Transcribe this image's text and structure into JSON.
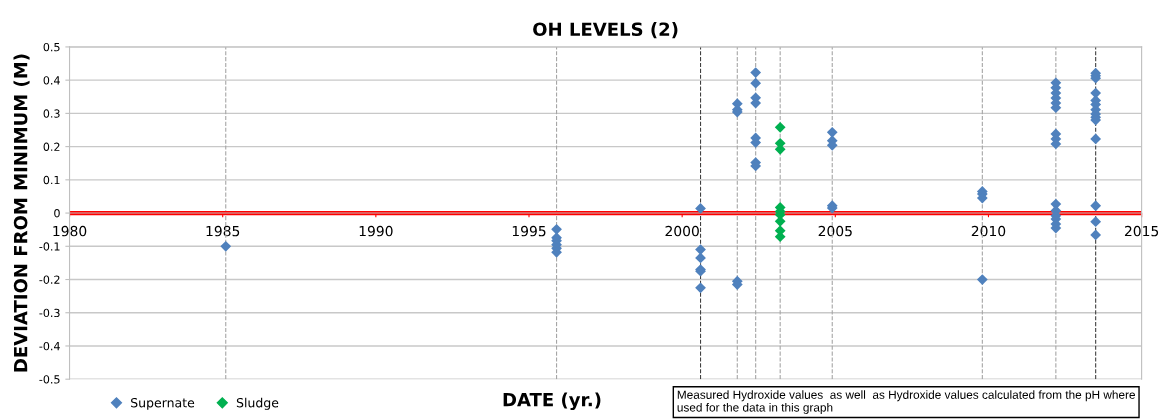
{
  "chart_data": {
    "type": "scatter",
    "title": "OH LEVELS (2)",
    "xlabel": "DATE (yr.)",
    "ylabel": "DEVIATION FROM MINIMUM (M)",
    "series": [
      {
        "name": "Supernate",
        "color": "#4f81bd",
        "x": [
          1985.1,
          1995.9,
          1995.9,
          1995.9,
          1995.9,
          1995.9,
          1995.9,
          2000.6,
          2000.6,
          2000.6,
          2000.6,
          2000.6,
          2000.6,
          2001.8,
          2001.8,
          2001.8,
          2001.8,
          2001.8,
          2002.4,
          2002.4,
          2002.4,
          2002.4,
          2002.4,
          2002.4,
          2002.4,
          2002.4,
          2004.9,
          2004.9,
          2004.9,
          2004.9,
          2004.9,
          2009.8,
          2009.8,
          2009.8,
          2009.8,
          2012.2,
          2012.2,
          2012.2,
          2012.2,
          2012.2,
          2012.2,
          2012.2,
          2012.2,
          2012.2,
          2012.2,
          2012.2,
          2012.2,
          2012.2,
          2012.2,
          2012.2,
          2013.5,
          2013.5,
          2013.5,
          2013.5,
          2013.5,
          2013.5,
          2013.5,
          2013.5,
          2013.5,
          2013.5,
          2013.5,
          2013.5,
          2013.5,
          2013.5
        ],
        "values": [
          -0.1,
          -0.049,
          -0.074,
          -0.083,
          -0.095,
          -0.106,
          -0.118,
          0.014,
          -0.11,
          -0.135,
          -0.17,
          -0.175,
          -0.225,
          0.329,
          0.311,
          0.304,
          -0.205,
          -0.215,
          0.423,
          0.391,
          0.347,
          0.331,
          0.226,
          0.212,
          0.152,
          0.142,
          0.243,
          0.218,
          0.204,
          0.022,
          0.015,
          0.065,
          0.057,
          0.045,
          -0.2,
          0.392,
          0.377,
          0.361,
          0.346,
          0.331,
          0.317,
          0.238,
          0.223,
          0.208,
          0.027,
          0.007,
          -0.008,
          -0.018,
          -0.033,
          -0.045,
          0.421,
          0.413,
          0.406,
          0.361,
          0.339,
          0.327,
          0.311,
          0.298,
          0.288,
          0.28,
          0.223,
          0.022,
          -0.026,
          -0.066
        ]
      },
      {
        "name": "Sludge",
        "color": "#00b050",
        "x": [
          2003.2,
          2003.2,
          2003.2,
          2003.2,
          2003.2,
          2003.2,
          2003.2,
          2003.2,
          2003.2
        ],
        "values": [
          0.258,
          0.21,
          0.192,
          0.017,
          0.005,
          -0.005,
          -0.025,
          -0.053,
          -0.071
        ]
      }
    ],
    "xlim": [
      1980,
      2015
    ],
    "xticks": [
      1980,
      1985,
      1990,
      1995,
      2000,
      2005,
      2010,
      2015
    ],
    "ylim": [
      -0.5,
      0.5
    ],
    "yticks": [
      -0.5,
      -0.4,
      -0.3,
      -0.2,
      -0.1,
      0,
      0.1,
      0.2,
      0.3,
      0.4,
      0.5
    ],
    "ref_lines": [
      {
        "axis": "y",
        "value": 0,
        "color": "#ff0000",
        "line_style": "solid"
      },
      {
        "axis": "x",
        "value": 1985.1,
        "color": "#a6a6a6",
        "line_style": "dashed"
      },
      {
        "axis": "x",
        "value": 1995.9,
        "color": "#a6a6a6",
        "line_style": "dashed"
      },
      {
        "axis": "x",
        "value": 2000.6,
        "color": "#404040",
        "line_style": "dashed"
      },
      {
        "axis": "x",
        "value": 2001.8,
        "color": "#a6a6a6",
        "line_style": "dashed"
      },
      {
        "axis": "x",
        "value": 2002.4,
        "color": "#a6a6a6",
        "line_style": "dashed"
      },
      {
        "axis": "x",
        "value": 2003.2,
        "color": "#a6a6a6",
        "line_style": "dashed"
      },
      {
        "axis": "x",
        "value": 2004.9,
        "color": "#a6a6a6",
        "line_style": "dashed"
      },
      {
        "axis": "x",
        "value": 2009.8,
        "color": "#a6a6a6",
        "line_style": "dashed"
      },
      {
        "axis": "x",
        "value": 2012.2,
        "color": "#a6a6a6",
        "line_style": "dashed"
      },
      {
        "axis": "x",
        "value": 2013.5,
        "color": "#404040",
        "line_style": "dashed"
      }
    ],
    "annotations": [
      "Measured Hydroxide values  as well  as Hydroxide values calculated from the pH where used for the data in this graph"
    ],
    "grid": "y",
    "legend": "bottom left",
    "marker": "diamond"
  }
}
